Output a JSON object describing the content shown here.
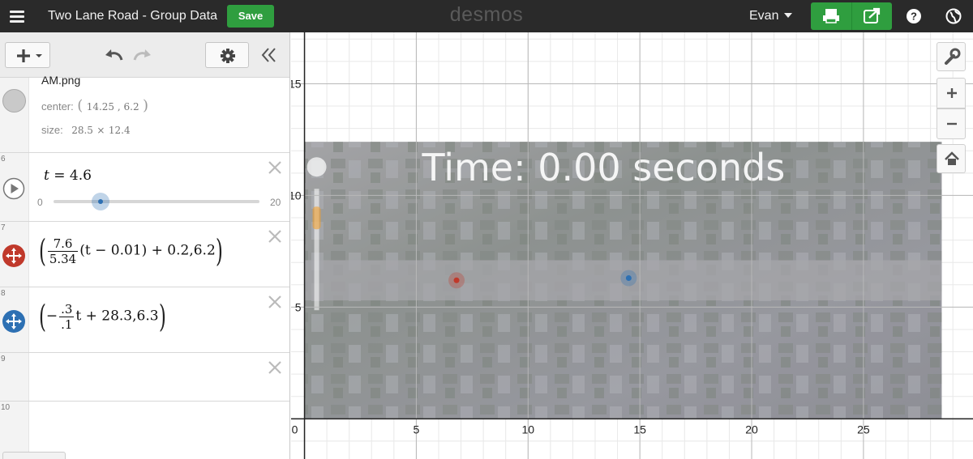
{
  "topbar": {
    "title": "Two Lane Road - Group Data",
    "save_label": "Save",
    "logo": "desmos",
    "user": "Evan"
  },
  "colors": {
    "topbar_bg": "#2a2a2a",
    "save_green": "#2f9e3f",
    "red_point": "#c0392b",
    "blue_point": "#2d70b3"
  },
  "expressions": [
    {
      "type": "image",
      "filename": "AM.png",
      "center_label": "center:",
      "center_x": "14.25",
      "center_y": "6.2",
      "size_label": "size:",
      "width": "28.5",
      "times": "×",
      "height": "12.4"
    },
    {
      "number": "6",
      "type": "slider",
      "variable": "t",
      "equals": "=",
      "value": "4.6",
      "min": "0",
      "max": "20",
      "fraction": 0.23
    },
    {
      "number": "7",
      "type": "point",
      "color_icon": "red-move-icon",
      "frac_num": "7.6",
      "frac_den": "5.34",
      "mid": "(t − 0.01) + 0.2,6.2"
    },
    {
      "number": "8",
      "type": "point",
      "color_icon": "blue-move-icon",
      "prefix": "−",
      "frac_num": ".3",
      "frac_den": ".1",
      "mid": "t + 28.3,6.3"
    },
    {
      "number": "9",
      "type": "empty"
    },
    {
      "number": "10",
      "type": "empty"
    }
  ],
  "graph": {
    "x_ticks": [
      "0",
      "5",
      "10",
      "15",
      "20",
      "25"
    ],
    "y_ticks": [
      "5",
      "10",
      "15"
    ],
    "x_range": [
      -0.6,
      29.9
    ],
    "y_range": [
      -1.8,
      17.3
    ],
    "image_overlay_text": "Time: 0.00 seconds",
    "points": [
      {
        "name": "red-point",
        "x": 6.8,
        "y": 6.2,
        "color": "#c0392b"
      },
      {
        "name": "blue-point",
        "x": 14.5,
        "y": 6.3,
        "color": "#2d70b3"
      }
    ]
  },
  "icons": [
    "hamburger-icon",
    "print-icon",
    "share-icon",
    "help-icon",
    "globe-icon",
    "add-icon",
    "undo-icon",
    "redo-icon",
    "gear-icon",
    "collapse-icon",
    "wrench-icon",
    "zoom-in-icon",
    "zoom-out-icon",
    "home-icon",
    "play-icon",
    "close-icon"
  ]
}
